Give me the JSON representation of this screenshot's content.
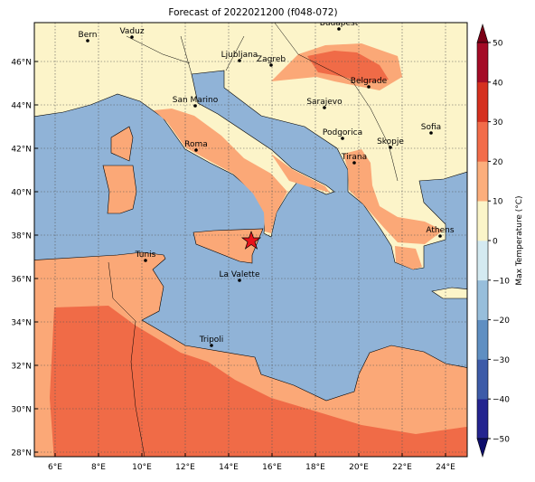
{
  "title": "Forecast of 2022021200 (f048-072)",
  "lon_ticks": [
    "6°E",
    "8°E",
    "10°E",
    "12°E",
    "14°E",
    "16°E",
    "18°E",
    "20°E",
    "22°E",
    "24°E"
  ],
  "lat_ticks": [
    "28°N",
    "30°N",
    "32°N",
    "34°N",
    "36°N",
    "38°N",
    "40°N",
    "42°N",
    "44°N",
    "46°N"
  ],
  "cities": [
    "Bern",
    "Vaduz",
    "Budapest",
    "Ljubljana",
    "Zagreb",
    "Belgrade",
    "San Marino",
    "Sarajevo",
    "Sofia",
    "Roma",
    "Podgorica",
    "Skopje",
    "Tirana",
    "Athens",
    "Tunis",
    "La Valette",
    "Tripoli"
  ],
  "colorbar": {
    "label": "Max Temperature (°C)",
    "ticks": [
      "−50",
      "−40",
      "−30",
      "−20",
      "−10",
      "0",
      "10",
      "20",
      "30",
      "40",
      "50"
    ],
    "colors": [
      "#24248f",
      "#3d5ba8",
      "#5f8fc2",
      "#97bedb",
      "#d4eaf1",
      "#fbf5c9",
      "#fcae7c",
      "#f26c4a",
      "#d5301f",
      "#a40b26"
    ],
    "under_color": "#0d0d6b",
    "over_color": "#7a0016"
  }
}
